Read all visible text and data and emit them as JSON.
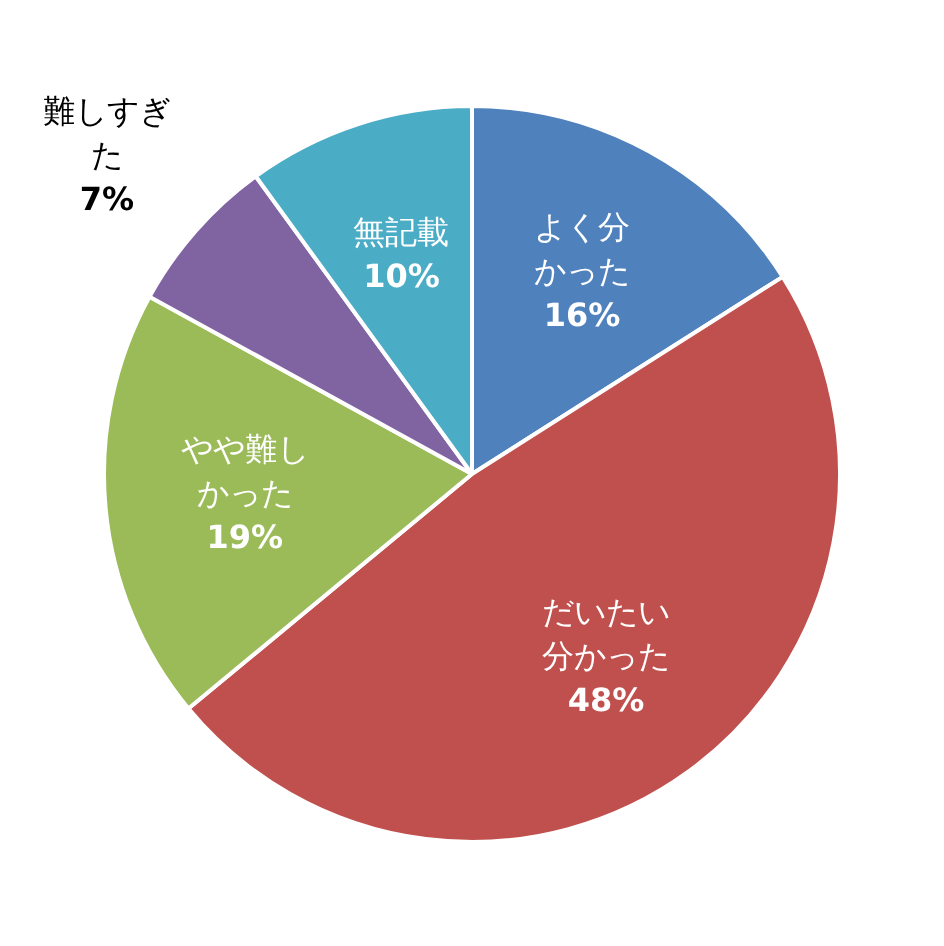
{
  "chart_data": {
    "type": "pie",
    "categories": [
      "よく分かった",
      "だいたい分かった",
      "やや難しかった",
      "難しすぎた",
      "無記載"
    ],
    "values": [
      16,
      48,
      19,
      7,
      10
    ],
    "colors": [
      "#4f81bd",
      "#c0504d",
      "#9bbb59",
      "#8064a2",
      "#4bacc6"
    ],
    "value_labels": [
      "16%",
      "48%",
      "19%",
      "7%",
      "10%"
    ],
    "legend": false
  }
}
